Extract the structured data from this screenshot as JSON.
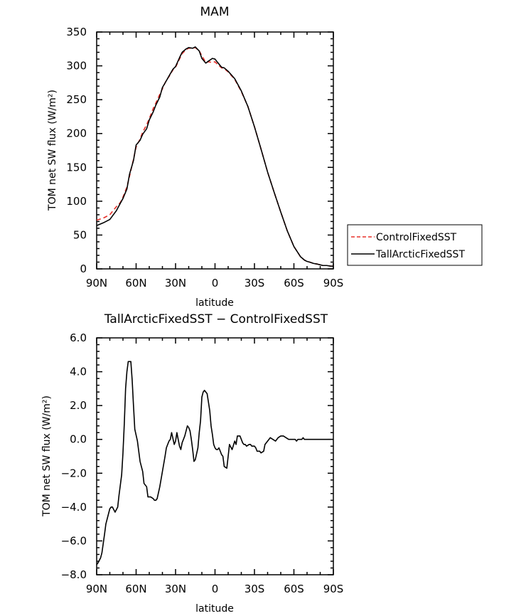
{
  "chart_data": [
    {
      "type": "line",
      "title": "MAM",
      "xlabel": "latitude",
      "ylabel": "TOM net SW flux (W/m²)",
      "xlim": [
        90,
        -90
      ],
      "ylim": [
        0,
        350
      ],
      "xticks": [
        {
          "value": 90,
          "label": "90N"
        },
        {
          "value": 60,
          "label": "60N"
        },
        {
          "value": 30,
          "label": "30N"
        },
        {
          "value": 0,
          "label": "0"
        },
        {
          "value": -30,
          "label": "30S"
        },
        {
          "value": -60,
          "label": "60S"
        },
        {
          "value": -90,
          "label": "90S"
        }
      ],
      "yticks": [
        {
          "value": 0,
          "label": "0"
        },
        {
          "value": 50,
          "label": "50"
        },
        {
          "value": 100,
          "label": "100"
        },
        {
          "value": 150,
          "label": "150"
        },
        {
          "value": 200,
          "label": "200"
        },
        {
          "value": 250,
          "label": "250"
        },
        {
          "value": 300,
          "label": "300"
        },
        {
          "value": 350,
          "label": "350"
        }
      ],
      "legend_position": "right-outside",
      "series": [
        {
          "name": "ControlFixedSST",
          "color": "#e8302a",
          "dash": "dashed",
          "x": [
            90,
            85,
            80,
            75,
            72,
            70,
            67,
            65,
            62,
            60,
            57,
            55,
            52,
            50,
            47,
            45,
            42,
            40,
            37,
            35,
            32,
            30,
            27,
            25,
            22,
            20,
            17,
            15,
            12,
            10,
            7,
            5,
            2,
            0,
            -2,
            -5,
            -7,
            -10,
            -15,
            -20,
            -25,
            -30,
            -35,
            -40,
            -45,
            -50,
            -55,
            -60,
            -65,
            -68,
            -70,
            -72,
            -75,
            -78,
            -80,
            -82,
            -85,
            -88,
            -90
          ],
          "y": [
            72,
            75,
            80,
            92,
            98,
            106,
            121,
            137,
            162,
            180,
            192,
            202,
            213,
            222,
            237,
            245,
            258,
            266,
            279,
            284,
            294,
            298,
            310,
            318,
            324,
            326,
            326,
            327,
            322,
            315,
            305,
            306,
            305,
            306,
            302,
            297,
            296,
            291,
            280,
            262,
            240,
            210,
            177,
            143,
            113,
            84,
            56,
            33,
            18,
            13,
            11,
            10,
            8,
            7,
            6,
            5,
            5,
            4,
            4
          ]
        },
        {
          "name": "TallArcticFixedSST",
          "color": "#000000",
          "dash": "solid",
          "x": [
            90,
            85,
            80,
            75,
            72,
            70,
            67,
            65,
            62,
            60,
            57,
            55,
            52,
            50,
            47,
            45,
            42,
            40,
            37,
            35,
            32,
            30,
            27,
            25,
            22,
            20,
            17,
            15,
            12,
            10,
            7,
            5,
            2,
            0,
            -2,
            -5,
            -7,
            -10,
            -15,
            -20,
            -25,
            -30,
            -35,
            -40,
            -45,
            -50,
            -55,
            -60,
            -65,
            -68,
            -70,
            -72,
            -75,
            -78,
            -80,
            -82,
            -85,
            -88,
            -90
          ],
          "y": [
            64,
            68,
            73,
            86,
            97,
            104,
            118,
            140,
            160,
            183,
            190,
            199,
            207,
            220,
            232,
            242,
            254,
            268,
            278,
            285,
            295,
            299,
            312,
            320,
            325,
            327,
            326,
            328,
            322,
            311,
            304,
            307,
            311,
            310,
            305,
            298,
            297,
            292,
            281,
            263,
            240,
            210,
            177,
            143,
            113,
            84,
            56,
            33,
            18,
            13,
            11,
            10,
            8,
            7,
            6,
            5,
            5,
            4,
            4
          ]
        }
      ]
    },
    {
      "type": "line",
      "title": "TallArcticFixedSST − ControlFixedSST",
      "xlabel": "latitude",
      "ylabel": "TOM net SW flux (W/m²)",
      "xlim": [
        90,
        -90
      ],
      "ylim": [
        -8,
        6
      ],
      "xticks": [
        {
          "value": 90,
          "label": "90N"
        },
        {
          "value": 60,
          "label": "60N"
        },
        {
          "value": 30,
          "label": "30N"
        },
        {
          "value": 0,
          "label": "0"
        },
        {
          "value": -30,
          "label": "30S"
        },
        {
          "value": -60,
          "label": "60S"
        },
        {
          "value": -90,
          "label": "90S"
        }
      ],
      "yticks": [
        {
          "value": 6,
          "label": "6.0"
        },
        {
          "value": 4,
          "label": "4.0"
        },
        {
          "value": 2,
          "label": "2.0"
        },
        {
          "value": 0,
          "label": "0.0"
        },
        {
          "value": -2,
          "label": "−2.0"
        },
        {
          "value": -4,
          "label": "−4.0"
        },
        {
          "value": -6,
          "label": "−6.0"
        },
        {
          "value": -8,
          "label": "−8.0"
        }
      ],
      "series": [
        {
          "color": "#000000",
          "dash": "solid",
          "x": [
            90,
            89,
            87,
            86,
            84,
            83,
            82,
            80,
            79,
            78,
            76,
            74,
            73,
            71,
            70,
            69,
            68,
            67,
            66,
            65,
            64,
            63,
            62,
            61,
            59,
            57,
            55,
            54,
            52,
            51,
            49,
            47,
            46,
            45,
            44,
            42,
            40,
            38,
            37,
            35,
            34,
            33,
            31,
            30,
            29,
            27,
            26,
            25,
            23,
            21,
            20,
            19,
            18,
            17,
            16,
            15,
            13,
            12,
            11,
            10,
            9,
            8,
            6,
            4,
            3,
            2,
            1,
            0,
            -1,
            -2,
            -3,
            -4,
            -5,
            -6,
            -7,
            -9,
            -11,
            -13,
            -15,
            -16,
            -17,
            -19,
            -20,
            -21,
            -22,
            -23,
            -24,
            -26,
            -27,
            -28,
            -30,
            -31,
            -32,
            -34,
            -35,
            -37,
            -38,
            -40,
            -42,
            -44,
            -46,
            -48,
            -50,
            -52,
            -54,
            -56,
            -58,
            -59,
            -60,
            -61,
            -62,
            -63,
            -64,
            -65,
            -66,
            -67,
            -68,
            -69,
            -70,
            -71,
            -72,
            -73,
            -74,
            -75,
            -76,
            -77,
            -78,
            -79,
            -80,
            -81,
            -82,
            -83,
            -84,
            -85,
            -86,
            -87,
            -88,
            -89,
            -90
          ],
          "y": [
            -7.4,
            -7.3,
            -7.0,
            -6.7,
            -5.6,
            -5.0,
            -4.7,
            -4.1,
            -4.0,
            -4.0,
            -4.3,
            -4.0,
            -3.3,
            -2.1,
            -0.8,
            0.9,
            3.0,
            4.0,
            4.6,
            4.6,
            4.6,
            3.5,
            2.0,
            0.6,
            -0.1,
            -1.3,
            -1.9,
            -2.6,
            -2.8,
            -3.4,
            -3.4,
            -3.5,
            -3.6,
            -3.6,
            -3.5,
            -2.8,
            -1.9,
            -1.0,
            -0.5,
            -0.1,
            0.0,
            0.4,
            -0.3,
            -0.1,
            0.4,
            -0.4,
            -0.6,
            -0.2,
            0.2,
            0.8,
            0.7,
            0.5,
            0.0,
            -0.6,
            -1.3,
            -1.2,
            -0.5,
            0.4,
            1.1,
            2.5,
            2.8,
            2.9,
            2.7,
            1.7,
            0.8,
            0.3,
            -0.3,
            -0.5,
            -0.6,
            -0.6,
            -0.5,
            -0.7,
            -0.9,
            -1.0,
            -1.6,
            -1.7,
            -0.3,
            -0.6,
            -0.1,
            -0.3,
            0.2,
            0.2,
            0.0,
            -0.2,
            -0.3,
            -0.3,
            -0.4,
            -0.3,
            -0.3,
            -0.4,
            -0.4,
            -0.5,
            -0.7,
            -0.7,
            -0.8,
            -0.7,
            -0.3,
            -0.1,
            0.1,
            0.0,
            -0.1,
            0.1,
            0.2,
            0.2,
            0.1,
            0.0,
            0.0,
            0.0,
            0.0,
            0.0,
            -0.1,
            0.0,
            0.0,
            0.0,
            0.0,
            0.1,
            0.0,
            0.0,
            0.0,
            0.0,
            0.0,
            0.0,
            0.0,
            0.0,
            0.0,
            0.0,
            0.0,
            0.0,
            0.0,
            0.0,
            0.0,
            0.0,
            0.0,
            0.0,
            0.0,
            0.0,
            0.0,
            0.0,
            0.0
          ]
        }
      ]
    }
  ]
}
